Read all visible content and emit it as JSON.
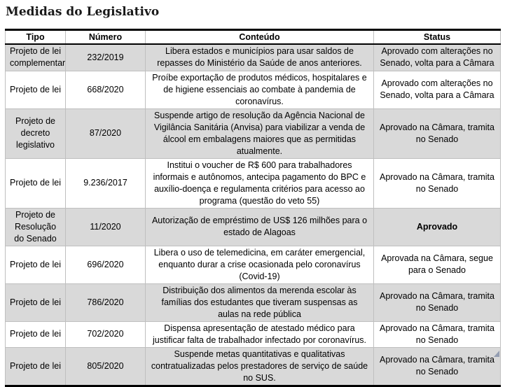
{
  "title": "Medidas do Legislativo",
  "table": {
    "columns": [
      "Tipo",
      "Número",
      "Conteúdo",
      "Status"
    ],
    "rows": [
      {
        "tipo": "Projeto de lei complementar",
        "numero": "232/2019",
        "conteudo": "Libera estados e municípios para usar saldos de repasses do Ministério da Saúde de anos anteriores.",
        "status": "Aprovado com alterações no Senado, volta para a Câmara"
      },
      {
        "tipo": "Projeto de lei",
        "numero": "668/2020",
        "conteudo": "Proíbe exportação de produtos médicos, hospitalares e de higiene essenciais ao combate à pandemia de coronavírus.",
        "status": "Aprovado com alterações no Senado, volta para a Câmara"
      },
      {
        "tipo": "Projeto de decreto legislativo",
        "numero": "87/2020",
        "conteudo": "Suspende artigo de resolução da Agência Nacional de Vigilância Sanitária (Anvisa) para viabilizar a venda de álcool em embalagens maiores que as permitidas atualmente.",
        "status": "Aprovado na Câmara, tramita no Senado"
      },
      {
        "tipo": "Projeto de lei",
        "numero": "9.236/2017",
        "conteudo": "Institui o voucher de R$ 600 para trabalhadores informais e autônomos, antecipa pagamento do BPC e auxílio-doença e regulamenta critérios para acesso ao programa (questão do veto 55)",
        "status": "Aprovado na Câmara, tramita no Senado"
      },
      {
        "tipo": "Projeto de Resolução do Senado",
        "numero": "11/2020",
        "conteudo": "Autorização de empréstimo de US$ 126 milhões para o estado de Alagoas",
        "status": "Aprovado"
      },
      {
        "tipo": "Projeto de lei",
        "numero": "696/2020",
        "conteudo": "Libera o uso de telemedicina, em caráter emergencial, enquanto durar a crise ocasionada pelo coronavírus (Covid-19)",
        "status": "Aprovada na Câmara, segue para o Senado"
      },
      {
        "tipo": "Projeto de lei",
        "numero": "786/2020",
        "conteudo": "Distribuição dos alimentos da merenda escolar às famílias dos estudantes que tiveram suspensas as aulas na rede pública",
        "status": "Aprovado na Câmara, tramita no Senado"
      },
      {
        "tipo": "Projeto de lei",
        "numero": "702/2020",
        "conteudo": "Dispensa apresentação de atestado médico para justificar falta de trabalhador infectado por coronavírus.",
        "status": "Aprovado na Câmara, tramita no Senado"
      },
      {
        "tipo": "Projeto de lei",
        "numero": "805/2020",
        "conteudo": "Suspende metas quantitativas e qualitativas contratualizadas pelos prestadores de serviço de saúde no SUS.",
        "status": "Aprovado na Câmara, tramita no Senado"
      }
    ]
  },
  "colors": {
    "row_alt_bg": "#d9d9d9",
    "grid_line": "#bfbfbf",
    "heavy_line": "#000000"
  }
}
